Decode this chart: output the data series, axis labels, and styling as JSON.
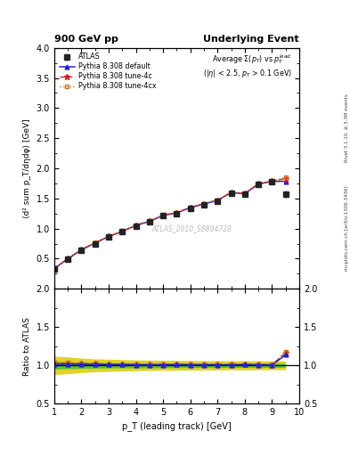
{
  "title_left": "900 GeV pp",
  "title_right": "Underlying Event",
  "subtitle": "Average Σ(p_T) vs p_T^{lead} (|η| < 2.5, p_T > 0.1 GeV)",
  "watermark": "ATLAS_2010_S8894728",
  "right_label1": "Rivet 3.1.10, ≥ 3.3M events",
  "right_label2": "mcplots.cern.ch [arXiv:1306.3436]",
  "xlabel": "p_T (leading track) [GeV]",
  "ylabel": "⟨d² sum p_T/dηdφ⟩ [GeV]",
  "ylabel_ratio": "Ratio to ATLAS",
  "xlim": [
    1,
    10
  ],
  "ylim_main": [
    0,
    4
  ],
  "ylim_ratio": [
    0.5,
    2
  ],
  "yticks_main": [
    0.5,
    1.0,
    1.5,
    2.0,
    2.5,
    3.0,
    3.5,
    4.0
  ],
  "yticks_ratio": [
    0.5,
    1.0,
    1.5,
    2.0
  ],
  "pt_data": [
    1.0,
    1.5,
    2.0,
    2.5,
    3.0,
    3.5,
    4.0,
    4.5,
    5.0,
    5.5,
    6.0,
    6.5,
    7.0,
    7.5,
    8.0,
    8.5,
    9.0,
    9.5
  ],
  "atlas_y": [
    0.33,
    0.49,
    0.64,
    0.75,
    0.86,
    0.945,
    1.045,
    1.115,
    1.21,
    1.25,
    1.34,
    1.4,
    1.46,
    1.59,
    1.565,
    1.73,
    1.775,
    1.57
  ],
  "atlas_yerr": [
    0.015,
    0.018,
    0.02,
    0.02,
    0.022,
    0.022,
    0.023,
    0.023,
    0.025,
    0.026,
    0.028,
    0.03,
    0.032,
    0.035,
    0.038,
    0.04,
    0.042,
    0.06
  ],
  "default_y": [
    0.335,
    0.498,
    0.648,
    0.76,
    0.868,
    0.953,
    1.052,
    1.12,
    1.218,
    1.26,
    1.348,
    1.408,
    1.468,
    1.598,
    1.578,
    1.74,
    1.783,
    1.785
  ],
  "tune4c_y": [
    0.34,
    0.504,
    0.654,
    0.765,
    0.873,
    0.958,
    1.057,
    1.125,
    1.223,
    1.265,
    1.353,
    1.413,
    1.473,
    1.603,
    1.585,
    1.745,
    1.788,
    1.83
  ],
  "tune4cx_y": [
    0.342,
    0.506,
    0.656,
    0.767,
    0.875,
    0.96,
    1.059,
    1.127,
    1.225,
    1.267,
    1.355,
    1.415,
    1.475,
    1.605,
    1.59,
    1.747,
    1.792,
    1.85
  ],
  "ratio_default": [
    1.015,
    1.016,
    1.012,
    1.013,
    1.009,
    1.009,
    1.007,
    1.004,
    1.007,
    1.008,
    1.006,
    1.006,
    1.005,
    1.005,
    1.008,
    1.006,
    1.005,
    1.136
  ],
  "ratio_tune4c": [
    1.03,
    1.028,
    1.022,
    1.02,
    1.015,
    1.014,
    1.011,
    1.009,
    1.011,
    1.012,
    1.01,
    1.009,
    1.009,
    1.008,
    1.013,
    1.009,
    1.007,
    1.165
  ],
  "ratio_tune4cx": [
    1.036,
    1.033,
    1.025,
    1.023,
    1.017,
    1.016,
    1.013,
    1.011,
    1.012,
    1.014,
    1.011,
    1.011,
    1.01,
    1.01,
    1.016,
    1.01,
    1.01,
    1.178
  ],
  "yellow_x": [
    1.0,
    1.5,
    2.0,
    2.5,
    3.0,
    3.5,
    4.0,
    4.5,
    5.0,
    5.5,
    6.0,
    6.5,
    7.0,
    7.5,
    8.0,
    8.5,
    9.0,
    9.5
  ],
  "yellow_lo": [
    0.88,
    0.89,
    0.905,
    0.915,
    0.92,
    0.925,
    0.93,
    0.932,
    0.934,
    0.935,
    0.937,
    0.938,
    0.939,
    0.94,
    0.94,
    0.941,
    0.942,
    0.943
  ],
  "yellow_hi": [
    1.12,
    1.11,
    1.095,
    1.085,
    1.08,
    1.075,
    1.07,
    1.068,
    1.066,
    1.065,
    1.063,
    1.062,
    1.061,
    1.06,
    1.06,
    1.059,
    1.058,
    1.057
  ],
  "green_lo": [
    0.95,
    0.955,
    0.96,
    0.963,
    0.965,
    0.966,
    0.967,
    0.968,
    0.969,
    0.97,
    0.971,
    0.971,
    0.972,
    0.972,
    0.972,
    0.973,
    0.973,
    0.974
  ],
  "green_hi": [
    1.05,
    1.045,
    1.04,
    1.037,
    1.035,
    1.034,
    1.033,
    1.032,
    1.031,
    1.03,
    1.029,
    1.029,
    1.028,
    1.028,
    1.028,
    1.027,
    1.027,
    1.026
  ],
  "atlas_color": "#222222",
  "default_color": "#2222cc",
  "tune4c_color": "#cc2222",
  "tune4cx_color": "#cc7722",
  "green_color": "#44bb44",
  "yellow_color": "#ddcc00",
  "background_color": "#ffffff"
}
